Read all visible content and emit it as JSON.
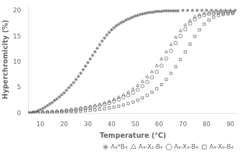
{
  "chart_data": {
    "type": "scatter",
    "xlabel": "Temperature (°C)",
    "ylabel": "Hyperchromicity (%)",
    "xlim": [
      5,
      93
    ],
    "ylim": [
      0,
      21
    ],
    "xticks": [
      10,
      20,
      30,
      40,
      50,
      60,
      70,
      80,
      90
    ],
    "yticks": [
      0,
      5,
      10,
      15,
      20
    ],
    "grid": false,
    "legend": "lower right",
    "series": [
      {
        "name": "A₄*B₄",
        "color": "#666666",
        "marker": "star",
        "x": [
          5,
          6,
          7,
          8,
          9,
          10,
          11,
          12,
          13,
          14,
          15,
          16,
          17,
          18,
          19,
          20,
          21,
          22,
          23,
          24,
          25,
          26,
          27,
          28,
          29,
          30,
          31,
          32,
          33,
          34,
          35,
          36,
          37,
          38,
          39,
          40,
          41,
          42,
          43,
          44,
          45,
          46,
          47,
          48,
          49,
          50,
          51,
          52,
          53,
          54,
          55,
          56,
          57,
          58,
          59,
          60,
          61,
          62,
          63,
          64,
          65,
          66,
          67,
          68,
          70,
          72,
          74,
          76,
          78,
          80,
          82,
          84,
          86,
          88,
          90,
          92
        ],
        "values": [
          0.05,
          0.1,
          0.2,
          0.3,
          0.5,
          0.7,
          0.9,
          1.2,
          1.5,
          1.8,
          2.1,
          2.5,
          2.8,
          3.2,
          3.6,
          4.0,
          4.5,
          5.0,
          5.5,
          6.0,
          6.6,
          7.2,
          7.8,
          8.5,
          9.2,
          9.9,
          10.6,
          11.3,
          12.0,
          12.7,
          13.4,
          14.1,
          14.7,
          15.3,
          15.8,
          16.3,
          16.7,
          17.1,
          17.4,
          17.7,
          17.9,
          18.2,
          18.4,
          18.6,
          18.8,
          19.0,
          19.1,
          19.3,
          19.4,
          19.5,
          19.6,
          19.7,
          19.7,
          19.8,
          19.9,
          19.9,
          19.9,
          20.0,
          20.0,
          20.0,
          20.0,
          20.0,
          20.0,
          20.0,
          20.1,
          20.1,
          20.1,
          20.1,
          20.1,
          20.1,
          20.1,
          20.1,
          20.1,
          20.1,
          20.1,
          20.1
        ]
      },
      {
        "name": "A₄-X₂-B₄",
        "color": "#666666",
        "marker": "triangle",
        "x": [
          5,
          7,
          9,
          11,
          13,
          15,
          17,
          19,
          21,
          23,
          25,
          27,
          29,
          31,
          33,
          35,
          37,
          39,
          41,
          43,
          45,
          47,
          49,
          51,
          53,
          55,
          57,
          59,
          61,
          63,
          65,
          67,
          69,
          71,
          73,
          75,
          77,
          79,
          81,
          83,
          85,
          87,
          89,
          91
        ],
        "values": [
          0.05,
          0.1,
          0.15,
          0.2,
          0.25,
          0.3,
          0.4,
          0.5,
          0.6,
          0.7,
          0.85,
          1.0,
          1.15,
          1.3,
          1.5,
          1.7,
          2.0,
          2.3,
          2.7,
          3.1,
          3.6,
          4.1,
          4.7,
          5.4,
          6.2,
          7.1,
          8.1,
          9.3,
          10.6,
          12.0,
          13.4,
          14.8,
          16.1,
          17.2,
          18.1,
          18.8,
          19.2,
          19.5,
          19.6,
          19.7,
          19.7,
          19.8,
          19.8,
          19.8
        ]
      },
      {
        "name": "A₄-X₄-B₄",
        "color": "#666666",
        "marker": "circle",
        "x": [
          5,
          7,
          9,
          11,
          13,
          15,
          17,
          19,
          21,
          23,
          25,
          27,
          29,
          31,
          33,
          35,
          37,
          39,
          41,
          43,
          45,
          47,
          49,
          51,
          53,
          55,
          57,
          59,
          61,
          63,
          65,
          67,
          69,
          71,
          73,
          75,
          77,
          79,
          81,
          83,
          85,
          87,
          89,
          91
        ],
        "values": [
          0.05,
          0.1,
          0.1,
          0.15,
          0.2,
          0.25,
          0.3,
          0.4,
          0.5,
          0.6,
          0.7,
          0.85,
          1.0,
          1.15,
          1.3,
          1.5,
          1.75,
          2.0,
          2.3,
          2.7,
          3.1,
          3.5,
          4.0,
          4.6,
          5.3,
          6.1,
          7.0,
          8.1,
          9.3,
          10.7,
          12.2,
          13.7,
          15.1,
          16.4,
          17.5,
          18.3,
          18.9,
          19.2,
          19.4,
          19.5,
          19.6,
          19.6,
          19.7,
          19.7
        ]
      },
      {
        "name": "A₄-X₆-B₄",
        "color": "#666666",
        "marker": "square",
        "x": [
          5,
          7,
          9,
          11,
          13,
          15,
          17,
          19,
          21,
          23,
          25,
          27,
          29,
          31,
          33,
          35,
          37,
          39,
          41,
          43,
          45,
          47,
          49,
          51,
          53,
          55,
          57,
          59,
          61,
          63,
          65,
          67,
          69,
          71,
          73,
          75,
          77,
          79,
          81,
          83,
          85,
          87,
          89,
          91
        ],
        "values": [
          0.0,
          0.0,
          0.05,
          0.05,
          0.1,
          0.1,
          0.15,
          0.2,
          0.25,
          0.3,
          0.35,
          0.4,
          0.5,
          0.55,
          0.65,
          0.75,
          0.9,
          1.05,
          1.2,
          1.4,
          1.6,
          1.9,
          2.2,
          2.55,
          3.0,
          3.5,
          4.1,
          4.8,
          5.6,
          6.6,
          7.8,
          9.1,
          10.5,
          12.0,
          13.5,
          15.0,
          16.3,
          17.4,
          18.2,
          18.8,
          19.1,
          19.3,
          19.4,
          19.5
        ]
      }
    ]
  }
}
